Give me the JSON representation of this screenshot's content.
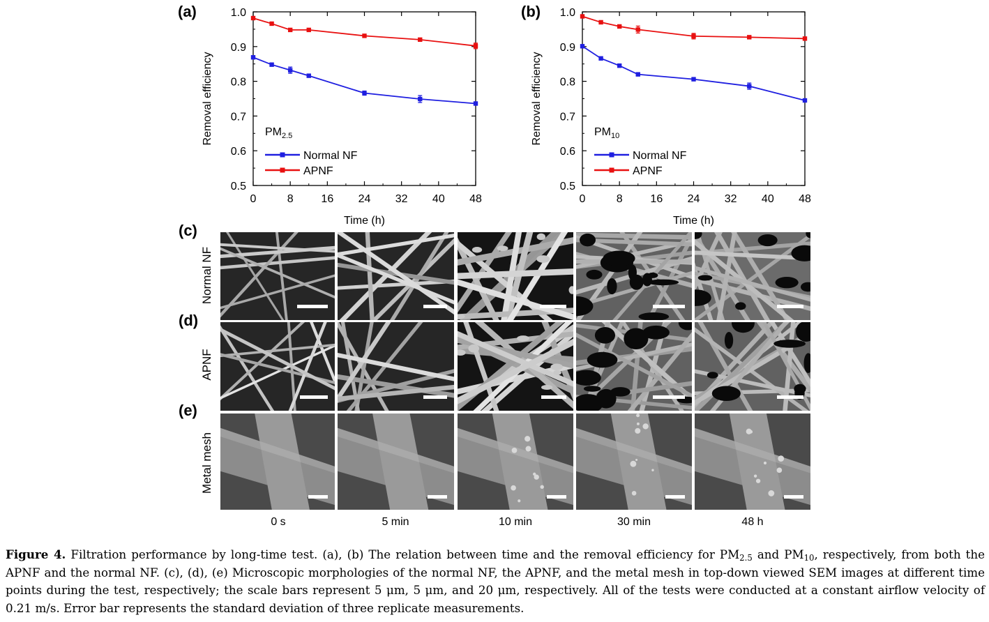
{
  "chart_data": [
    {
      "type": "line",
      "panel": "(a)",
      "annotation": "PM2.5",
      "annotation_main": "PM",
      "annotation_sub": "2.5",
      "xlabel": "Time (h)",
      "ylabel": "Removal efficiency",
      "xlim": [
        0,
        48
      ],
      "ylim": [
        0.5,
        1.0
      ],
      "xticks": [
        0,
        8,
        16,
        24,
        32,
        40,
        48
      ],
      "yticks": [
        0.5,
        0.6,
        0.7,
        0.8,
        0.9,
        1.0
      ],
      "ytick_labels": [
        "0.5",
        "0.6",
        "0.7",
        "0.8",
        "0.9",
        "1.0"
      ],
      "legend_position": "lower-left",
      "series": [
        {
          "name": "Normal NF",
          "color": "#1f1fe0",
          "x": [
            0,
            4,
            8,
            12,
            24,
            36,
            48
          ],
          "y": [
            0.869,
            0.848,
            0.832,
            0.816,
            0.766,
            0.749,
            0.736
          ],
          "err": [
            0.003,
            0.004,
            0.009,
            0.003,
            0.006,
            0.01,
            0.003
          ]
        },
        {
          "name": "APNF",
          "color": "#e81010",
          "x": [
            0,
            4,
            8,
            12,
            24,
            36,
            48
          ],
          "y": [
            0.982,
            0.966,
            0.948,
            0.948,
            0.931,
            0.92,
            0.902
          ],
          "err": [
            0.003,
            0.003,
            0.003,
            0.003,
            0.003,
            0.003,
            0.008
          ]
        }
      ]
    },
    {
      "type": "line",
      "panel": "(b)",
      "annotation": "PM10",
      "annotation_main": "PM",
      "annotation_sub": "10",
      "xlabel": "Time (h)",
      "ylabel": "Removal efficiency",
      "xlim": [
        0,
        48
      ],
      "ylim": [
        0.5,
        1.0
      ],
      "xticks": [
        0,
        8,
        16,
        24,
        32,
        40,
        48
      ],
      "yticks": [
        0.5,
        0.6,
        0.7,
        0.8,
        0.9,
        1.0
      ],
      "ytick_labels": [
        "0.5",
        "0.6",
        "0.7",
        "0.8",
        "0.9",
        "1.0"
      ],
      "legend_position": "lower-left",
      "series": [
        {
          "name": "Normal NF",
          "color": "#1f1fe0",
          "x": [
            0,
            4,
            8,
            12,
            24,
            36,
            48
          ],
          "y": [
            0.901,
            0.866,
            0.845,
            0.82,
            0.806,
            0.786,
            0.745
          ],
          "err": [
            0.003,
            0.003,
            0.003,
            0.003,
            0.003,
            0.009,
            0.003
          ]
        },
        {
          "name": "APNF",
          "color": "#e81010",
          "x": [
            0,
            4,
            8,
            12,
            24,
            36,
            48
          ],
          "y": [
            0.987,
            0.97,
            0.958,
            0.949,
            0.93,
            0.927,
            0.923
          ],
          "err": [
            0.003,
            0.003,
            0.003,
            0.01,
            0.008,
            0.003,
            0.003
          ]
        }
      ]
    }
  ],
  "panels": {
    "c": "(c)",
    "d": "(d)",
    "e": "(e)"
  },
  "rows": [
    {
      "label": "Normal NF",
      "style": "fibers"
    },
    {
      "label": "APNF",
      "style": "fibers"
    },
    {
      "label": "Metal mesh",
      "style": "mesh"
    }
  ],
  "time_points": [
    "0 s",
    "5 min",
    "10 min",
    "30 min",
    "48 h"
  ],
  "caption": {
    "figure_label": "Figure 4.",
    "text_1": " Filtration performance by long-time test. (a), (b) The relation between time and the removal efficiency for PM",
    "sub_1": "2.5",
    "text_2": " and PM",
    "sub_2": "10",
    "text_3": ", respectively, from both the APNF and the normal NF. (c), (d), (e) Microscopic morphologies of the normal NF, the APNF, and the metal mesh in top-down viewed SEM images at different time points during the test, respectively; the scale bars represent 5 μm, 5 μm, and 20 μm, respectively. All of the tests were conducted at a constant airflow velocity of 0.21 m/s. Error bar represents the standard deviation of three replicate measurements."
  }
}
